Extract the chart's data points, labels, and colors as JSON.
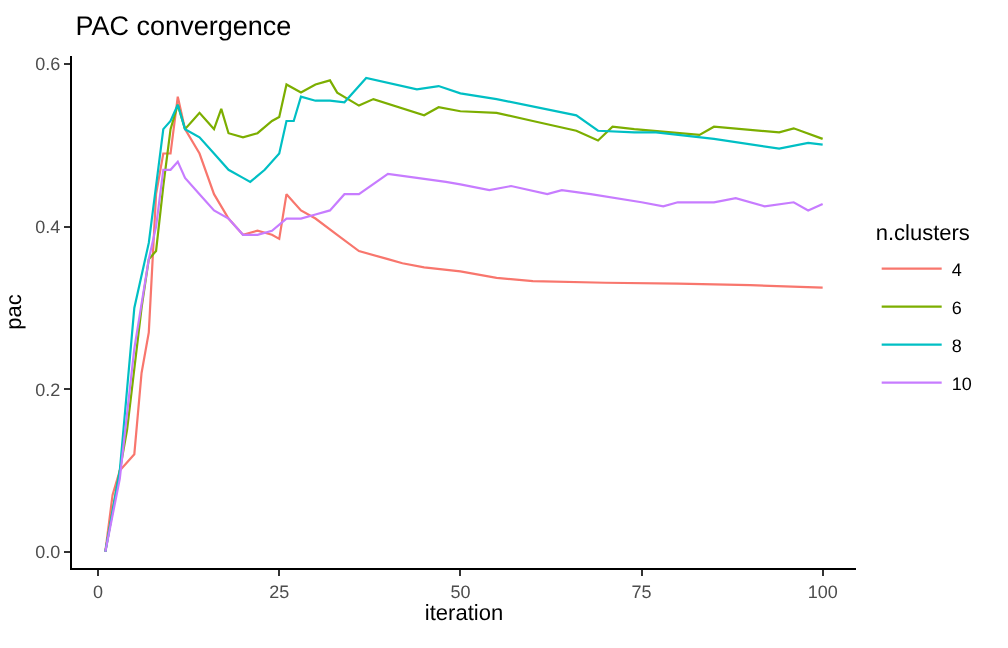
{
  "chart_data": {
    "type": "line",
    "title": "PAC convergence",
    "xlabel": "iteration",
    "ylabel": "pac",
    "legend_title": "n.clusters",
    "legend": "right",
    "grid": false,
    "marker": "none",
    "line_style": "solid",
    "xlim": [
      -3.6,
      104.6
    ],
    "xticks": [
      0,
      25,
      50,
      75,
      100
    ],
    "ylim": [
      -0.02,
      0.61
    ],
    "yticks": [
      {
        "value": 0,
        "label": "0.0"
      },
      0.2,
      0.4,
      0.6
    ],
    "series": [
      {
        "name": "4",
        "color": "#f8766d",
        "x": [
          1,
          2,
          3,
          5,
          6,
          7,
          8,
          9,
          10,
          11,
          12,
          14,
          16,
          18,
          20,
          22,
          24,
          25,
          26,
          28,
          30,
          33,
          36,
          40,
          42,
          45,
          50,
          55,
          60,
          70,
          80,
          90,
          100
        ],
        "values": [
          0,
          0.07,
          0.1,
          0.12,
          0.22,
          0.27,
          0.44,
          0.49,
          0.49,
          0.56,
          0.52,
          0.49,
          0.44,
          0.41,
          0.39,
          0.395,
          0.39,
          0.385,
          0.44,
          0.42,
          0.41,
          0.39,
          0.37,
          0.36,
          0.355,
          0.35,
          0.345,
          0.337,
          0.333,
          0.331,
          0.33,
          0.328,
          0.325
        ]
      },
      {
        "name": "6",
        "color": "#7cae00",
        "x": [
          1,
          2,
          4,
          6,
          7,
          8,
          9,
          10,
          11,
          12,
          13,
          14,
          15,
          16,
          17,
          18,
          20,
          22,
          24,
          25,
          26,
          28,
          30,
          32,
          33,
          36,
          38,
          45,
          47,
          50,
          55,
          60,
          66,
          69,
          71,
          74,
          83,
          85,
          94,
          96,
          100
        ],
        "values": [
          0,
          0.05,
          0.15,
          0.3,
          0.36,
          0.37,
          0.45,
          0.52,
          0.55,
          0.52,
          0.53,
          0.54,
          0.53,
          0.52,
          0.545,
          0.515,
          0.51,
          0.515,
          0.53,
          0.535,
          0.575,
          0.565,
          0.575,
          0.58,
          0.565,
          0.549,
          0.557,
          0.537,
          0.547,
          0.542,
          0.54,
          0.53,
          0.518,
          0.506,
          0.523,
          0.52,
          0.513,
          0.523,
          0.516,
          0.521,
          0.508
        ]
      },
      {
        "name": "8",
        "color": "#00bfc4",
        "x": [
          1,
          3,
          5,
          7,
          9,
          10,
          11,
          12,
          14,
          16,
          18,
          20,
          21,
          23,
          25,
          26,
          27,
          28,
          30,
          32,
          34,
          37,
          44,
          47,
          50,
          55,
          66,
          69,
          74,
          77,
          85,
          94,
          98,
          100
        ],
        "values": [
          0,
          0.1,
          0.3,
          0.38,
          0.52,
          0.53,
          0.55,
          0.52,
          0.51,
          0.49,
          0.47,
          0.46,
          0.455,
          0.47,
          0.49,
          0.53,
          0.53,
          0.56,
          0.555,
          0.555,
          0.553,
          0.583,
          0.569,
          0.573,
          0.564,
          0.557,
          0.537,
          0.518,
          0.516,
          0.516,
          0.508,
          0.496,
          0.503,
          0.501
        ]
      },
      {
        "name": "10",
        "color": "#c77cff",
        "x": [
          1,
          3,
          5,
          7,
          8,
          9,
          10,
          11,
          12,
          14,
          16,
          18,
          20,
          22,
          24,
          26,
          28,
          30,
          32,
          34,
          36,
          40,
          44,
          48,
          50,
          54,
          57,
          62,
          64,
          68,
          75,
          78,
          80,
          85,
          88,
          92,
          96,
          98,
          100
        ],
        "values": [
          0,
          0.09,
          0.25,
          0.36,
          0.4,
          0.47,
          0.47,
          0.48,
          0.46,
          0.44,
          0.42,
          0.41,
          0.39,
          0.39,
          0.395,
          0.41,
          0.41,
          0.415,
          0.42,
          0.44,
          0.44,
          0.465,
          0.46,
          0.455,
          0.452,
          0.445,
          0.45,
          0.44,
          0.445,
          0.44,
          0.43,
          0.425,
          0.43,
          0.43,
          0.435,
          0.425,
          0.43,
          0.42,
          0.428
        ]
      }
    ]
  }
}
